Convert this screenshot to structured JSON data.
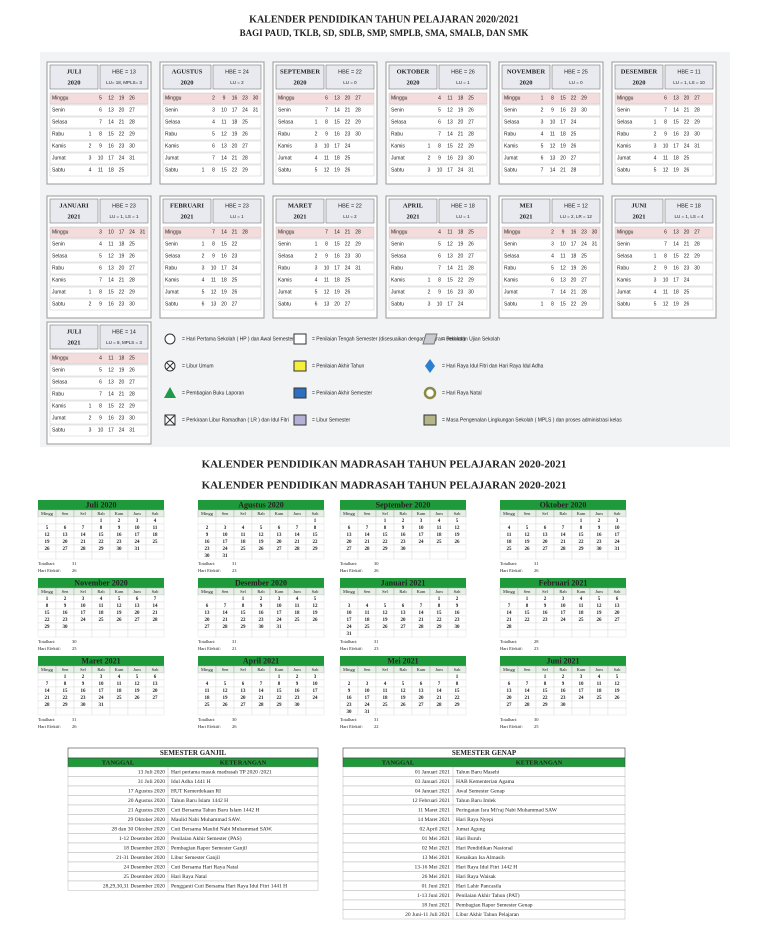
{
  "top": {
    "title": "KALENDER PENDIDIKAN TAHUN PELAJARAN 2020/2021",
    "subtitle": "BAGI PAUD, TKLB, SD, SDLB, SMP, SMPLB, SMA, SMALB, DAN SMK",
    "days": [
      "Minggu",
      "Senin",
      "Selasa",
      "Rabu",
      "Kamis",
      "Jumat",
      "Sabtu"
    ],
    "months": [
      {
        "name": "JULI",
        "year": "2020",
        "hbe": "HBE = 13",
        "lu": "LU= 18, MPLS= 3",
        "weeks": [
          [
            null,
            null,
            null,
            1,
            2,
            3,
            4
          ],
          [
            5,
            6,
            7,
            8,
            9,
            10,
            11
          ],
          [
            12,
            13,
            14,
            15,
            16,
            17,
            18
          ],
          [
            19,
            20,
            21,
            22,
            23,
            24,
            25
          ],
          [
            26,
            27,
            28,
            29,
            30,
            31
          ]
        ]
      },
      {
        "name": "AGUSTUS",
        "year": "2020",
        "hbe": "HBE = 24",
        "lu": "LU = 2",
        "weeks": [
          [
            null,
            null,
            null,
            null,
            null,
            null,
            1
          ],
          [
            2,
            3,
            4,
            5,
            6,
            7,
            8
          ],
          [
            9,
            10,
            11,
            12,
            13,
            14,
            15
          ],
          [
            16,
            17,
            18,
            19,
            20,
            21,
            22
          ],
          [
            23,
            24,
            25,
            26,
            27,
            28,
            29
          ],
          [
            30,
            31
          ]
        ]
      },
      {
        "name": "SEPTEMBER",
        "year": "2020",
        "hbe": "HBE = 22",
        "lu": "LU = 0",
        "weeks": [
          [
            null,
            null,
            1,
            2,
            3,
            4,
            5
          ],
          [
            6,
            7,
            8,
            9,
            10,
            11,
            12
          ],
          [
            13,
            14,
            15,
            16,
            17,
            18,
            19
          ],
          [
            20,
            21,
            22,
            23,
            24,
            25,
            26
          ],
          [
            27,
            28,
            29,
            30
          ]
        ]
      },
      {
        "name": "OKTOBER",
        "year": "2020",
        "hbe": "HBE = 26",
        "lu": "LU = 1",
        "weeks": [
          [
            null,
            null,
            null,
            null,
            1,
            2,
            3
          ],
          [
            4,
            5,
            6,
            7,
            8,
            9,
            10
          ],
          [
            11,
            12,
            13,
            14,
            15,
            16,
            17
          ],
          [
            18,
            19,
            20,
            21,
            22,
            23,
            24
          ],
          [
            25,
            26,
            27,
            28,
            29,
            30,
            31
          ]
        ]
      },
      {
        "name": "NOVEMBER",
        "year": "2020",
        "hbe": "HBE = 25",
        "lu": "LU = 0",
        "weeks": [
          [
            1,
            2,
            3,
            4,
            5,
            6,
            7
          ],
          [
            8,
            9,
            10,
            11,
            12,
            13,
            14
          ],
          [
            15,
            16,
            17,
            18,
            19,
            20,
            21
          ],
          [
            22,
            23,
            24,
            25,
            26,
            27,
            28
          ],
          [
            29,
            30
          ]
        ]
      },
      {
        "name": "DESEMBER",
        "year": "2020",
        "hbe": "HBE = 11",
        "lu": "LU = 1, LS = 10",
        "weeks": [
          [
            null,
            null,
            1,
            2,
            3,
            4,
            5
          ],
          [
            6,
            7,
            8,
            9,
            10,
            11,
            12
          ],
          [
            13,
            14,
            15,
            16,
            17,
            18,
            19
          ],
          [
            20,
            21,
            22,
            23,
            24,
            25,
            26
          ],
          [
            27,
            28,
            29,
            30,
            31
          ]
        ]
      },
      {
        "name": "JANUARI",
        "year": "2021",
        "hbe": "HBE = 23",
        "lu": "LU = 1, LS = 1",
        "weeks": [
          [
            null,
            null,
            null,
            null,
            null,
            1,
            2
          ],
          [
            3,
            4,
            5,
            6,
            7,
            8,
            9
          ],
          [
            10,
            11,
            12,
            13,
            14,
            15,
            16
          ],
          [
            17,
            18,
            19,
            20,
            21,
            22,
            23
          ],
          [
            24,
            25,
            26,
            27,
            28,
            29,
            30
          ],
          [
            31
          ]
        ]
      },
      {
        "name": "FEBRUARI",
        "year": "2021",
        "hbe": "HBE = 23",
        "lu": "LU = 1",
        "weeks": [
          [
            null,
            1,
            2,
            3,
            4,
            5,
            6
          ],
          [
            7,
            8,
            9,
            10,
            11,
            12,
            13
          ],
          [
            14,
            15,
            16,
            17,
            18,
            19,
            20
          ],
          [
            21,
            22,
            23,
            24,
            25,
            26,
            27
          ],
          [
            28
          ]
        ]
      },
      {
        "name": "MARET",
        "year": "2021",
        "hbe": "HBE = 22",
        "lu": "LU = 2",
        "weeks": [
          [
            null,
            1,
            2,
            3,
            4,
            5,
            6
          ],
          [
            7,
            8,
            9,
            10,
            11,
            12,
            13
          ],
          [
            14,
            15,
            16,
            17,
            18,
            19,
            20
          ],
          [
            21,
            22,
            23,
            24,
            25,
            26,
            27
          ],
          [
            28,
            29,
            30,
            31
          ]
        ]
      },
      {
        "name": "APRIL",
        "year": "2021",
        "hbe": "HBE = 18",
        "lu": "LU = 1",
        "weeks": [
          [
            null,
            null,
            null,
            null,
            1,
            2,
            3
          ],
          [
            4,
            5,
            6,
            7,
            8,
            9,
            10
          ],
          [
            11,
            12,
            13,
            14,
            15,
            16,
            17
          ],
          [
            18,
            19,
            20,
            21,
            22,
            23,
            24
          ],
          [
            25,
            26,
            27,
            28,
            29,
            30
          ]
        ]
      },
      {
        "name": "MEI",
        "year": "2021",
        "hbe": "HBE = 12",
        "lu": "LU = 2, LR = 12",
        "weeks": [
          [
            null,
            null,
            null,
            null,
            null,
            null,
            1
          ],
          [
            2,
            3,
            4,
            5,
            6,
            7,
            8
          ],
          [
            9,
            10,
            11,
            12,
            13,
            14,
            15
          ],
          [
            16,
            17,
            18,
            19,
            20,
            21,
            22
          ],
          [
            23,
            24,
            25,
            26,
            27,
            28,
            29
          ],
          [
            30,
            31
          ]
        ]
      },
      {
        "name": "JUNI",
        "year": "2021",
        "hbe": "HBE = 18",
        "lu": "LU = 1, LS = 4",
        "weeks": [
          [
            null,
            null,
            1,
            2,
            3,
            4,
            5
          ],
          [
            6,
            7,
            8,
            9,
            10,
            11,
            12
          ],
          [
            13,
            14,
            15,
            16,
            17,
            18,
            19
          ],
          [
            20,
            21,
            22,
            23,
            24,
            25,
            26
          ],
          [
            27,
            28,
            29,
            30
          ]
        ]
      },
      {
        "name": "JULI",
        "year": "2021",
        "hbe": "HBE = 14",
        "lu": "LU = 8, MPLS = 3",
        "weeks": [
          [
            null,
            null,
            null,
            null,
            1,
            2,
            3
          ],
          [
            4,
            5,
            6,
            7,
            8,
            9,
            10
          ],
          [
            11,
            12,
            13,
            14,
            15,
            16,
            17
          ],
          [
            18,
            19,
            20,
            21,
            22,
            23,
            24
          ],
          [
            25,
            26,
            27,
            28,
            29,
            30,
            31
          ]
        ]
      }
    ],
    "legend": [
      "= Hari Pertama Sekolah ( HP ) dan Awal Semester",
      "= Libur Umum",
      "= Pembagian Buku Laporan",
      "= Perkiraan Libur Ramadhan ( LR ) dan Idul Fitri",
      "= Penilaian Tengah Semester (disesuaikan dengan program sekolah)",
      "= Penilaian Akhir Tahun",
      "= Penilaian Akhir Semester",
      "= Libur Semester",
      "= Perkiraan Ujian Sekolah",
      "= Hari Raya Idul Fitri dan Hari Raya Idul Adha",
      "= Hari Raya Natal",
      "= Masa Pengenalan Lingkungan Sekolah ( MPLS ) dan proses administrasi kelas"
    ]
  },
  "madrasah": {
    "title": "KALENDER PENDIDIKAN MADRASAH TAHUN PELAJARAN 2020-2021",
    "days": [
      "Mingg",
      "Sen",
      "Sel",
      "Rab",
      "Kam",
      "Jum",
      "Sab"
    ],
    "total_label": "Totalhari:",
    "effective_label": "Hari Efektif:",
    "months": [
      {
        "name": "Juli 2020",
        "total": 31,
        "effective": 26
      },
      {
        "name": "Agustus 2020",
        "total": 31,
        "effective": 23
      },
      {
        "name": "September 2020",
        "total": 30,
        "effective": 26
      },
      {
        "name": "Oktober 2020",
        "total": 31,
        "effective": 26
      },
      {
        "name": "November 2020",
        "total": 30,
        "effective": 25
      },
      {
        "name": "Desember 2020",
        "total": 31,
        "effective": 21
      },
      {
        "name": "Januari 2021",
        "total": 31,
        "effective": 23
      },
      {
        "name": "Februari 2021",
        "total": 28,
        "effective": 23
      },
      {
        "name": "Maret 2021",
        "total": 31,
        "effective": 26
      },
      {
        "name": "April 2021",
        "total": 30,
        "effective": 26
      },
      {
        "name": "Mei 2021",
        "total": 31,
        "effective": 22
      },
      {
        "name": "Juni 2021",
        "total": 30,
        "effective": 25
      }
    ],
    "semesters": [
      {
        "title": "SEMESTER GANJIL",
        "headers": [
          "TANGGAL",
          "KETERANGAN"
        ],
        "rows": [
          [
            "13 Juli 2020",
            "Hari pertama masuk madrasah TP 2020 /2021"
          ],
          [
            "31 Juli 2020",
            "Idul Adha 1441 H"
          ],
          [
            "17 Agustus 2020",
            "HUT Kemerdekaan RI"
          ],
          [
            "20 Agustus 2020",
            "Tahun Baru Islam 1442 H"
          ],
          [
            "21 Agustus 2020",
            "Cuti Bersama Tahun Baru Islam 1442 H"
          ],
          [
            "29 Oktober 2020",
            "Maulid Nabi Muhammad SAW."
          ],
          [
            "28 dan 30 Oktober 2020",
            "Cuti Bersama Maulid Nabi Muhammad SAW."
          ],
          [
            "1-12 Desember 2020",
            "Penilaian Akhir Semester (PAS)"
          ],
          [
            "18 Desember 2020",
            "Pembagian Rapor Semester Ganjil"
          ],
          [
            "21-31 Desember 2020",
            "Libur Semester Ganjil"
          ],
          [
            "24 Desember 2020",
            "Cuti Bersama Hari Raya Natal"
          ],
          [
            "25 Desember 2020",
            "Hari Raya Natal"
          ],
          [
            "28,29,30,31 Desember 2020",
            "Pengganti Cuti Bersama Hari Raya Idul Fitri 1441 H"
          ]
        ]
      },
      {
        "title": "SEMESTER GENAP",
        "headers": [
          "TANGGAL",
          "KETERANGAN"
        ],
        "rows": [
          [
            "01 Januari 2021",
            "Tahun Baru Masehi"
          ],
          [
            "03 Januari 2021",
            "HAB Kementerian Agama"
          ],
          [
            "04 Januari 2021",
            "Awal Semester Genap"
          ],
          [
            "12 Februari 2021",
            "Tahun Baru Imlek"
          ],
          [
            "11 Maret 2021",
            "Peringatan Isra Mi'raj Nabi Muhammad SAW"
          ],
          [
            "14 Maret 2021",
            "Hari Raya Nyepi"
          ],
          [
            "02 April 2021",
            "Jumat Agung"
          ],
          [
            "01 Mei 2021",
            "Hari Buruh"
          ],
          [
            "02 Mei 2021",
            "Hari Pendidikan Nasional"
          ],
          [
            "13 Mei 2021",
            "Kenaikan Isa Almasih"
          ],
          [
            "13-16 Mei 2021",
            "Hari Raya Idul Fitri 1442 H"
          ],
          [
            "26 Mei 2021",
            "Hari Raya Waisak"
          ],
          [
            "01 Juni 2021",
            "Hari Lahir Pancasila"
          ],
          [
            "1-13 Juni 2021",
            "Penilaian Akhir Tahun (PAT)"
          ],
          [
            "18 Juni 2021",
            "Pembagian Rapor Semester Genap"
          ],
          [
            "20 Juni-11 Juli 2021",
            "Libur Akhir Tahun Pelajaran"
          ]
        ]
      }
    ]
  }
}
